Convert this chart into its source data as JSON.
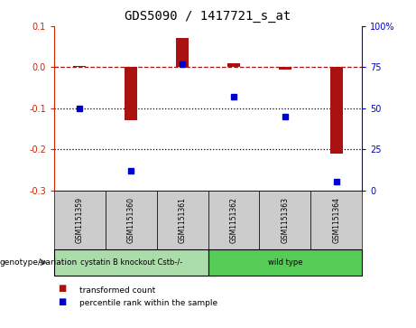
{
  "title": "GDS5090 / 1417721_s_at",
  "samples": [
    "GSM1151359",
    "GSM1151360",
    "GSM1151361",
    "GSM1151362",
    "GSM1151363",
    "GSM1151364"
  ],
  "bar_values": [
    0.003,
    -0.13,
    0.072,
    0.01,
    -0.005,
    -0.21
  ],
  "dot_values_percentile": [
    50,
    12,
    77,
    57,
    45,
    5
  ],
  "ylim_left": [
    -0.3,
    0.1
  ],
  "ylim_right": [
    0,
    100
  ],
  "bar_color": "#aa1111",
  "dot_color": "#0000cc",
  "groups": [
    {
      "label": "cystatin B knockout Cstb-/-",
      "n_samples": 3,
      "color": "#aaddaa"
    },
    {
      "label": "wild type",
      "n_samples": 3,
      "color": "#55cc55"
    }
  ],
  "group_row_label": "genotype/variation",
  "legend_bar_label": "transformed count",
  "legend_dot_label": "percentile rank within the sample",
  "background_color": "#ffffff",
  "right_axis_color": "#0000cc",
  "left_axis_color": "#cc2200",
  "tick_label_size": 7,
  "title_fontsize": 10,
  "sample_box_color": "#cccccc",
  "right_axis_labels": [
    "0",
    "25",
    "50",
    "75",
    "100%"
  ]
}
